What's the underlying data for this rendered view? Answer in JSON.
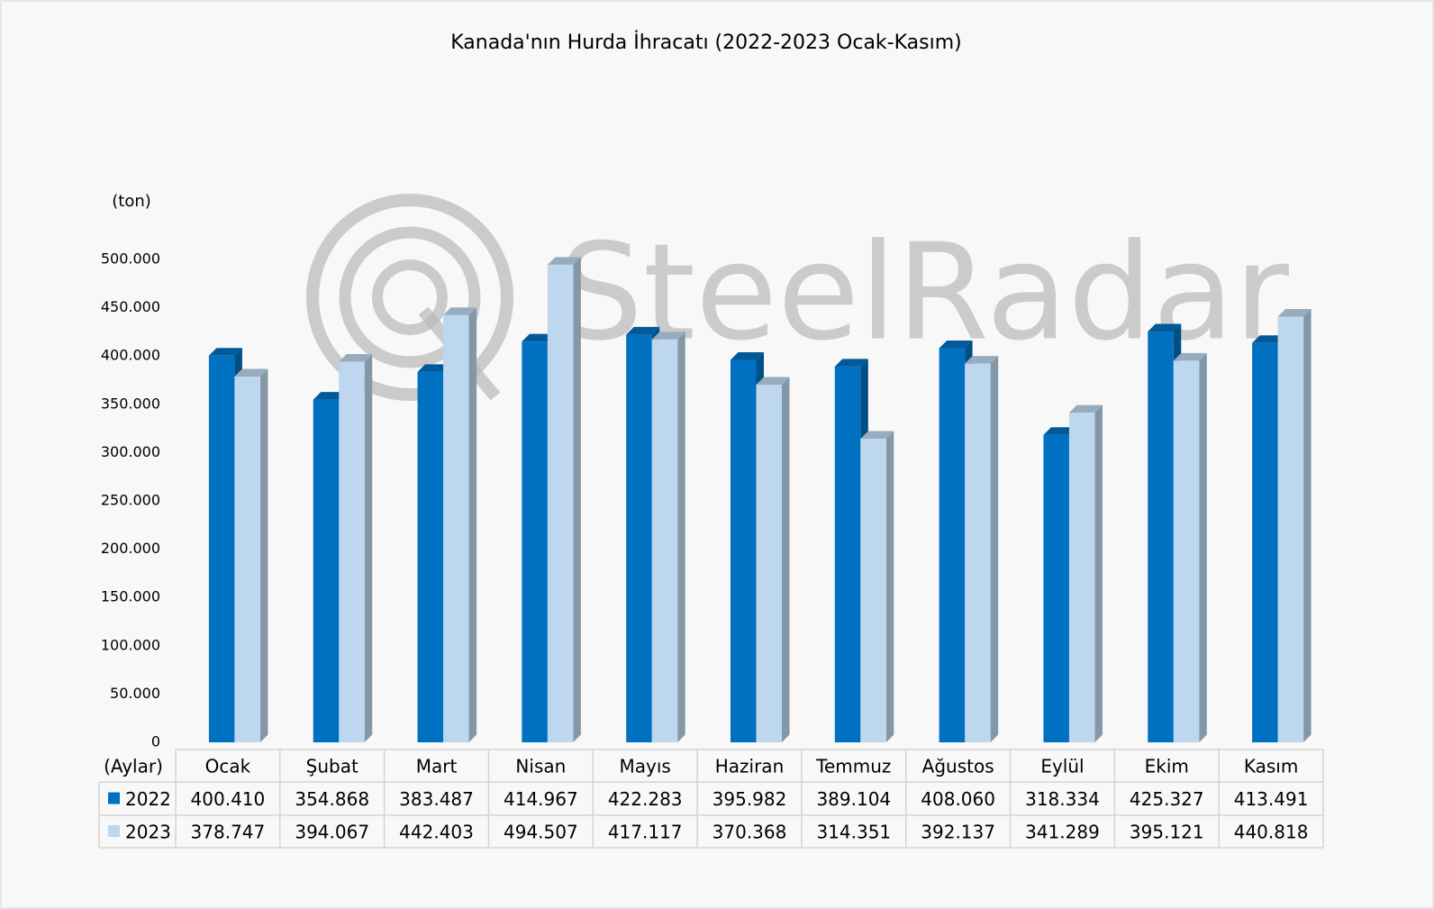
{
  "chart_data": {
    "type": "bar3d",
    "title": "Kanada'nın Hurda İhracatı (2022-2023 Ocak-Kasım)",
    "y_unit": "(ton)",
    "x_unit": "(Aylar)",
    "watermark": "SteelRadar",
    "categories": [
      "Ocak",
      "Şubat",
      "Mart",
      "Nisan",
      "Mayıs",
      "Haziran",
      "Temmuz",
      "Ağustos",
      "Eylül",
      "Ekim",
      "Kasım"
    ],
    "series": [
      {
        "name": "2022",
        "color": "#0070c0",
        "values": [
          400410,
          354868,
          383487,
          414967,
          422283,
          395982,
          389104,
          408060,
          318334,
          425327,
          413491
        ],
        "value_labels": [
          "400.410",
          "354.868",
          "383.487",
          "414.967",
          "422.283",
          "395.982",
          "389.104",
          "408.060",
          "318.334",
          "425.327",
          "413.491"
        ]
      },
      {
        "name": "2023",
        "color": "#bdd7ee",
        "values": [
          378747,
          394067,
          442403,
          494507,
          417117,
          370368,
          314351,
          392137,
          341289,
          395121,
          440818
        ],
        "value_labels": [
          "378.747",
          "394.067",
          "442.403",
          "494.507",
          "417.117",
          "370.368",
          "314.351",
          "392.137",
          "341.289",
          "395.121",
          "440.818"
        ]
      }
    ],
    "ylim": [
      0,
      500000
    ],
    "yticks": [
      0,
      {
        "value": 50000,
        "label": "50.000"
      },
      {
        "value": 100000,
        "label": "100.000"
      },
      {
        "value": 150000,
        "label": "150.000"
      },
      {
        "value": 200000,
        "label": "200.000"
      },
      {
        "value": 250000,
        "label": "250.000"
      },
      {
        "value": 300000,
        "label": "300.000"
      },
      {
        "value": 350000,
        "label": "350.000"
      },
      {
        "value": 400000,
        "label": "400.000"
      },
      {
        "value": 450000,
        "label": "450.000"
      },
      {
        "value": 500000,
        "label": "500.000"
      }
    ],
    "grid": false
  }
}
